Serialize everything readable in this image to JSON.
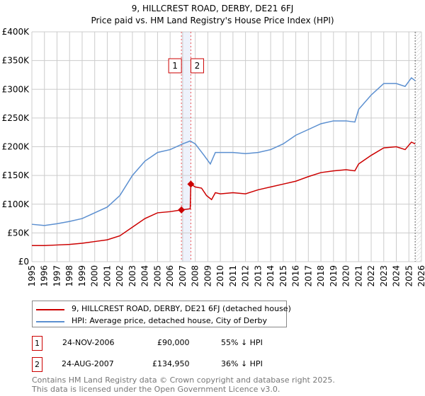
{
  "chart_data": {
    "type": "line",
    "title": "9, HILLCREST ROAD, DERBY, DE21 6FJ",
    "subtitle": "Price paid vs. HM Land Registry's House Price Index (HPI)",
    "xlim": [
      1995,
      2026
    ],
    "ylim": [
      0,
      400000
    ],
    "x_ticks": [
      "1995",
      "1996",
      "1997",
      "1998",
      "1999",
      "2000",
      "2001",
      "2002",
      "2003",
      "2004",
      "2005",
      "2006",
      "2007",
      "2008",
      "2009",
      "2010",
      "2011",
      "2012",
      "2013",
      "2014",
      "2015",
      "2016",
      "2017",
      "2018",
      "2019",
      "2020",
      "2021",
      "2022",
      "2023",
      "2024",
      "2025",
      "2026"
    ],
    "y_ticks": [
      {
        "v": 0,
        "l": "£0"
      },
      {
        "v": 50000,
        "l": "£50K"
      },
      {
        "v": 100000,
        "l": "£100K"
      },
      {
        "v": 150000,
        "l": "£150K"
      },
      {
        "v": 200000,
        "l": "£200K"
      },
      {
        "v": 250000,
        "l": "£250K"
      },
      {
        "v": 300000,
        "l": "£300K"
      },
      {
        "v": 350000,
        "l": "£350K"
      },
      {
        "v": 400000,
        "l": "£400K"
      }
    ],
    "grid": true,
    "series": [
      {
        "name": "9, HILLCREST ROAD, DERBY, DE21 6FJ (detached house)",
        "color": "#cc0000",
        "x": [
          1995,
          1996,
          1997,
          1998,
          1999,
          2000,
          2001,
          2002,
          2003,
          2004,
          2005,
          2006,
          2006.9,
          2007.6,
          2007.65,
          2008,
          2008.5,
          2008.9,
          2009.3,
          2009.6,
          2010,
          2011,
          2012,
          2013,
          2014,
          2015,
          2016,
          2017,
          2018,
          2019,
          2020,
          2020.7,
          2021,
          2022,
          2023,
          2024,
          2024.7,
          2025.2,
          2025.5
        ],
        "y": [
          28000,
          28000,
          29000,
          30000,
          32000,
          35000,
          38000,
          45000,
          60000,
          75000,
          85000,
          87000,
          90000,
          92000,
          134950,
          130000,
          128000,
          115000,
          108000,
          120000,
          118000,
          120000,
          118000,
          125000,
          130000,
          135000,
          140000,
          148000,
          155000,
          158000,
          160000,
          158000,
          170000,
          185000,
          198000,
          200000,
          195000,
          208000,
          205000
        ]
      },
      {
        "name": "HPI: Average price, detached house, City of Derby",
        "color": "#5b8fd0",
        "x": [
          1995,
          1996,
          1997,
          1998,
          1999,
          2000,
          2001,
          2002,
          2003,
          2004,
          2005,
          2006,
          2007,
          2007.6,
          2008,
          2008.7,
          2009.2,
          2009.6,
          2010,
          2011,
          2012,
          2013,
          2014,
          2015,
          2016,
          2017,
          2018,
          2019,
          2020,
          2020.7,
          2021,
          2022,
          2023,
          2024,
          2024.7,
          2025.2,
          2025.5
        ],
        "y": [
          65000,
          63000,
          66000,
          70000,
          75000,
          85000,
          95000,
          115000,
          150000,
          175000,
          190000,
          195000,
          205000,
          210000,
          205000,
          185000,
          170000,
          190000,
          190000,
          190000,
          188000,
          190000,
          195000,
          205000,
          220000,
          230000,
          240000,
          245000,
          245000,
          243000,
          265000,
          290000,
          310000,
          310000,
          305000,
          320000,
          315000
        ]
      }
    ],
    "sales": [
      {
        "label": "1",
        "x": 2006.9,
        "date": "24-NOV-2006",
        "price": "£90,000",
        "value": 90000,
        "hpi": "55% ↓ HPI"
      },
      {
        "label": "2",
        "x": 2007.65,
        "date": "24-AUG-2007",
        "price": "£134,950",
        "value": 134950,
        "hpi": "36% ↓ HPI"
      }
    ],
    "data_end": 2025.5
  },
  "footer": [
    "Contains HM Land Registry data © Crown copyright and database right 2025.",
    "This data is licensed under the Open Government Licence v3.0."
  ]
}
